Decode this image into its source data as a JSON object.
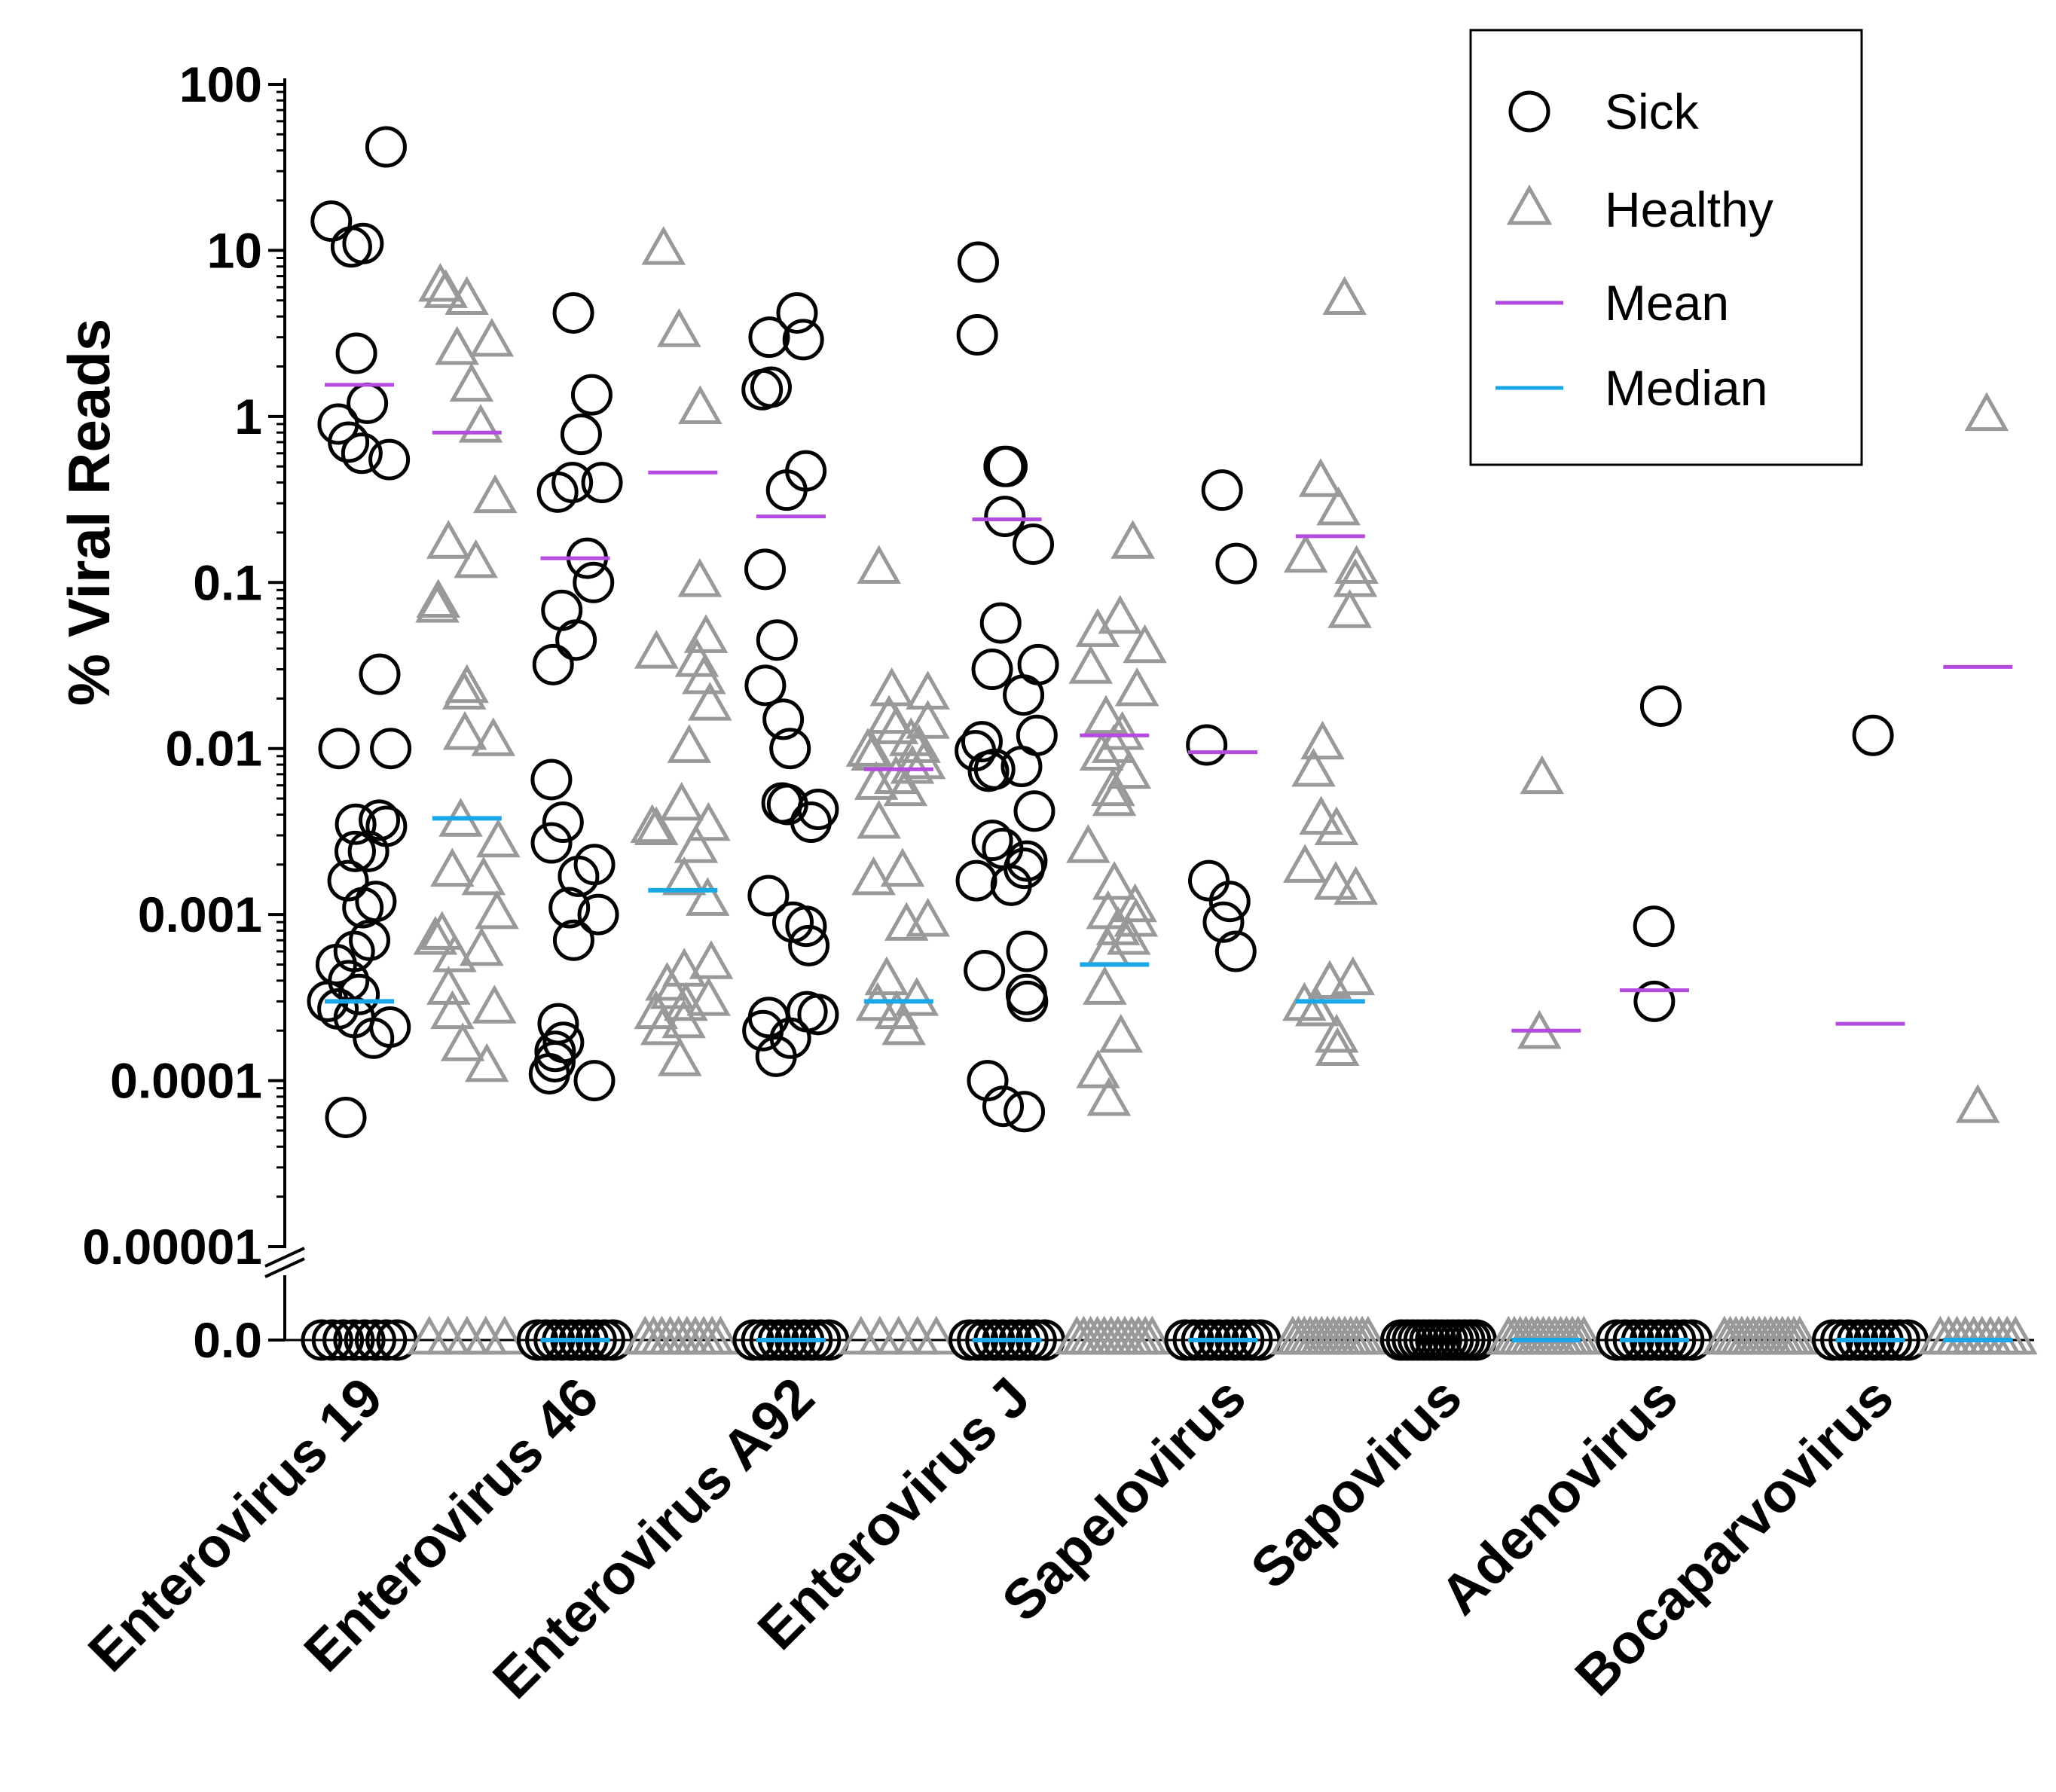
{
  "chart_data": {
    "type": "scatter",
    "title": "",
    "xlabel": "",
    "ylabel": "% Viral Reads",
    "yscale": "log",
    "ylim": [
      1e-05,
      100
    ],
    "yticks": [
      {
        "value": 100,
        "label": "100"
      },
      {
        "value": 10,
        "label": "10"
      },
      {
        "value": 1,
        "label": "1"
      },
      {
        "value": 0.1,
        "label": "0.1"
      },
      {
        "value": 0.01,
        "label": "0.01"
      },
      {
        "value": 0.001,
        "label": "0.001"
      },
      {
        "value": 0.0001,
        "label": "0.0001"
      },
      {
        "value": 1e-05,
        "label": "0.00001"
      }
    ],
    "zero_label": "0.0",
    "categories": [
      "Enterovirus 19",
      "Enterovirus 46",
      "Enterovirus A92",
      "Enterovirus J",
      "Sapelovirus",
      "Sapovirus",
      "Adenovirus",
      "Bocaparvovirus"
    ],
    "legend": {
      "position": "top-right",
      "entries": [
        {
          "label": "Sick",
          "marker": "circle",
          "color": "#000000"
        },
        {
          "label": "Healthy",
          "marker": "triangle",
          "color": "#999999"
        },
        {
          "label": "Mean",
          "marker": "line",
          "color": "#b44be1"
        },
        {
          "label": "Median",
          "marker": "line",
          "color": "#1aa7e8"
        }
      ]
    },
    "colors": {
      "sick": "#000000",
      "healthy": "#999999",
      "mean": "#b44be1",
      "median": "#1aa7e8"
    },
    "series": [
      {
        "category": "Enterovirus 19",
        "group": "Sick",
        "values": [
          42,
          15,
          11,
          10.5,
          2.4,
          1.2,
          0.9,
          0.7,
          0.6,
          0.55,
          0.028,
          0.01,
          0.01,
          0.0037,
          0.0035,
          0.0034,
          0.0024,
          0.0024,
          0.0016,
          0.0012,
          0.0011,
          0.0007,
          0.0006,
          0.0005,
          0.0004,
          0.00033,
          0.0003,
          0.00027,
          0.00024,
          0.00021,
          0.00018,
          6e-05
        ],
        "zero_count": 8,
        "mean": 1.55,
        "median": 0.0003
      },
      {
        "category": "Enterovirus 19",
        "group": "Healthy",
        "values": [
          6,
          5.5,
          5,
          2.8,
          2.5,
          1.5,
          0.85,
          0.32,
          0.17,
          0.13,
          0.075,
          0.07,
          0.023,
          0.021,
          0.012,
          0.011,
          0.0036,
          0.0027,
          0.0018,
          0.0016,
          0.001,
          0.00075,
          0.0007,
          0.0006,
          0.00055,
          0.00035,
          0.00027,
          0.00025,
          0.00016,
          0.00012
        ],
        "zero_count": 5,
        "mean": 0.8,
        "median": 0.0038
      },
      {
        "category": "Enterovirus 46",
        "group": "Sick",
        "values": [
          4.2,
          1.35,
          0.78,
          0.4,
          0.4,
          0.35,
          0.14,
          0.1,
          0.068,
          0.045,
          0.032,
          0.0065,
          0.0036,
          0.0027,
          0.002,
          0.0017,
          0.0011,
          0.001,
          0.0007,
          0.00022,
          0.00017,
          0.00015,
          0.00013,
          0.00011,
          0.0001
        ],
        "zero_count": 10,
        "mean": 0.14,
        "median": 0
      },
      {
        "category": "Enterovirus 46",
        "group": "Healthy",
        "values": [
          10,
          3.2,
          1.1,
          0.1,
          0.046,
          0.037,
          0.033,
          0.026,
          0.018,
          0.01,
          0.0045,
          0.0034,
          0.0033,
          0.0032,
          0.0025,
          0.0016,
          0.0012,
          0.0005,
          0.00045,
          0.00037,
          0.00033,
          0.0003,
          0.00028,
          0.00025,
          0.00022,
          0.0002,
          0.00013
        ],
        "zero_count": 10,
        "mean": 0.46,
        "median": 0.0014
      },
      {
        "category": "Enterovirus A92",
        "group": "Sick",
        "values": [
          4.2,
          3,
          2.9,
          1.5,
          1.45,
          0.47,
          0.36,
          0.12,
          0.045,
          0.024,
          0.015,
          0.01,
          0.0047,
          0.0046,
          0.0043,
          0.0036,
          0.0013,
          0.0009,
          0.00085,
          0.00065,
          0.00026,
          0.00025,
          0.00024,
          0.0002,
          0.00018,
          0.00014
        ],
        "zero_count": 10,
        "mean": 0.25,
        "median": 0
      },
      {
        "category": "Enterovirus A92",
        "group": "Healthy",
        "values": [
          0.12,
          0.022,
          0.021,
          0.015,
          0.014,
          0.013,
          0.011,
          0.01,
          0.0095,
          0.009,
          0.008,
          0.0075,
          0.0065,
          0.006,
          0.0055,
          0.0035,
          0.0018,
          0.0016,
          0.0009,
          0.00085,
          0.0004,
          0.0003,
          0.00028,
          0.00025,
          0.0002
        ],
        "zero_count": 5,
        "mean": 0.0075,
        "median": 0.0003
      },
      {
        "category": "Enterovirus J",
        "group": "Sick",
        "values": [
          8.5,
          3.1,
          0.5,
          0.5,
          0.25,
          0.17,
          0.057,
          0.032,
          0.03,
          0.021,
          0.012,
          0.011,
          0.0097,
          0.0078,
          0.0075,
          0.0073,
          0.0042,
          0.0028,
          0.0025,
          0.0021,
          0.0019,
          0.0016,
          0.0015,
          0.0006,
          0.00046,
          0.00033,
          0.0003,
          0.0001,
          7e-05,
          6.5e-05
        ],
        "zero_count": 10,
        "mean": 0.24,
        "median": 0
      },
      {
        "category": "Enterovirus J",
        "group": "Healthy",
        "values": [
          0.17,
          0.06,
          0.05,
          0.04,
          0.03,
          0.022,
          0.015,
          0.012,
          0.01,
          0.009,
          0.007,
          0.0055,
          0.0048,
          0.0025,
          0.0015,
          0.0011,
          0.001,
          0.0009,
          0.0008,
          0.0007,
          0.0006,
          0.00035,
          0.00018,
          0.00011,
          7.5e-05
        ],
        "zero_count": 12,
        "mean": 0.012,
        "median": 0.0005
      },
      {
        "category": "Sapelovirus",
        "group": "Sick",
        "values": [
          0.36,
          0.13,
          0.0105,
          0.0016,
          0.0012,
          0.0009,
          0.0006
        ],
        "zero_count": 10,
        "mean": 0.0095,
        "median": 0
      },
      {
        "category": "Sapelovirus",
        "group": "Healthy",
        "values": [
          5,
          0.4,
          0.27,
          0.14,
          0.12,
          0.1,
          0.065,
          0.0105,
          0.0072,
          0.0037,
          0.0032,
          0.0019,
          0.0015,
          0.0014,
          0.0004,
          0.00038,
          0.00028,
          0.00026,
          0.00018,
          0.00015
        ],
        "zero_count": 14,
        "mean": 0.19,
        "median": 0.0003
      },
      {
        "category": "Sapovirus",
        "group": "Sick",
        "values": [],
        "zero_count": 14,
        "mean": null,
        "median": null
      },
      {
        "category": "Sapovirus",
        "group": "Healthy",
        "values": [
          0.0065,
          0.00019
        ],
        "zero_count": 14,
        "mean": 0.0002,
        "median": 0
      },
      {
        "category": "Adenovirus",
        "group": "Sick",
        "values": [
          0.018,
          0.00085,
          0.0003
        ],
        "zero_count": 10,
        "mean": 0.00035,
        "median": 0
      },
      {
        "category": "Adenovirus",
        "group": "Healthy",
        "values": [],
        "zero_count": 14,
        "mean": null,
        "median": null
      },
      {
        "category": "Bocaparvovirus",
        "group": "Sick",
        "values": [
          0.012
        ],
        "zero_count": 10,
        "mean": 0.00022,
        "median": 0
      },
      {
        "category": "Bocaparvovirus",
        "group": "Healthy",
        "values": [
          1,
          6.8e-05
        ],
        "zero_count": 10,
        "mean": 0.031,
        "median": 0
      }
    ]
  }
}
